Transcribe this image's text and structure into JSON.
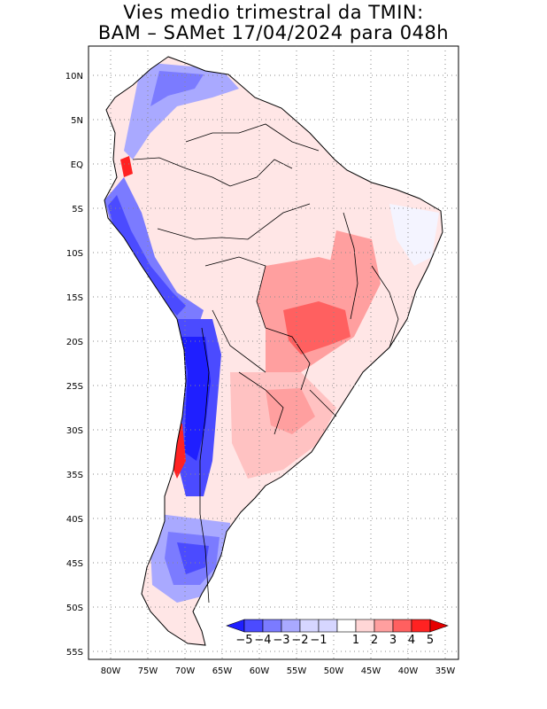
{
  "title_line1": "Vies medio trimestral da TMIN:",
  "title_line2": "BAM – SAMet 17/04/2024  para 048h",
  "lat_labels": [
    "10N",
    "5N",
    "EQ",
    "5S",
    "10S",
    "15S",
    "20S",
    "25S",
    "30S",
    "35S",
    "40S",
    "45S",
    "50S",
    "55S"
  ],
  "lon_labels": [
    "80W",
    "75W",
    "70W",
    "65W",
    "60W",
    "55W",
    "50W",
    "45W",
    "40W",
    "35W"
  ],
  "colorbar": {
    "labels": [
      "−5",
      "−4",
      "−3",
      "−2",
      "−1",
      "1",
      "2",
      "3",
      "4",
      "5"
    ],
    "colors": [
      "#1f1fff",
      "#4b4bff",
      "#7b7bff",
      "#a9a9ff",
      "#d6d6ff",
      "#ffffff",
      "#ffd6d6",
      "#ff9f9f",
      "#ff6060",
      "#ff2222",
      "#e60000"
    ]
  }
}
